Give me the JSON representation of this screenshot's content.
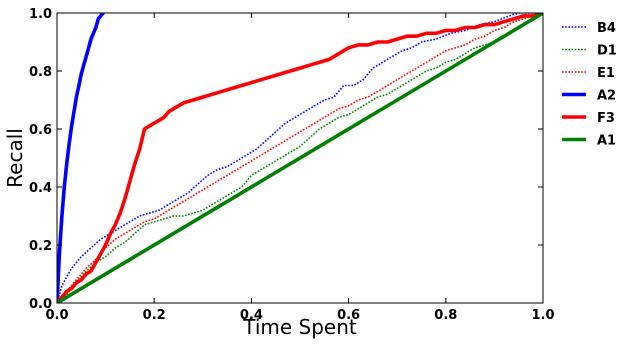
{
  "chart_data": {
    "type": "line",
    "title": "",
    "xlabel": "Time Spent",
    "ylabel": "Recall",
    "xlim": [
      0.0,
      1.0
    ],
    "ylim": [
      0.0,
      1.0
    ],
    "xticks": [
      "0.0",
      "0.2",
      "0.4",
      "0.6",
      "0.8",
      "1.0"
    ],
    "yticks": [
      "0.0",
      "0.2",
      "0.4",
      "0.6",
      "0.8",
      "1.0"
    ],
    "grid": false,
    "legend_position": "outside-right",
    "series": [
      {
        "name": "B4",
        "color": "#0000ff",
        "style": "dotted",
        "points": [
          [
            0.0,
            0.0
          ],
          [
            0.01,
            0.06
          ],
          [
            0.02,
            0.09
          ],
          [
            0.03,
            0.12
          ],
          [
            0.05,
            0.16
          ],
          [
            0.07,
            0.19
          ],
          [
            0.09,
            0.22
          ],
          [
            0.11,
            0.24
          ],
          [
            0.13,
            0.26
          ],
          [
            0.15,
            0.28
          ],
          [
            0.17,
            0.3
          ],
          [
            0.19,
            0.31
          ],
          [
            0.21,
            0.32
          ],
          [
            0.23,
            0.34
          ],
          [
            0.25,
            0.36
          ],
          [
            0.27,
            0.38
          ],
          [
            0.29,
            0.41
          ],
          [
            0.31,
            0.44
          ],
          [
            0.33,
            0.46
          ],
          [
            0.35,
            0.47
          ],
          [
            0.37,
            0.49
          ],
          [
            0.39,
            0.51
          ],
          [
            0.41,
            0.53
          ],
          [
            0.43,
            0.56
          ],
          [
            0.45,
            0.59
          ],
          [
            0.47,
            0.62
          ],
          [
            0.49,
            0.64
          ],
          [
            0.51,
            0.66
          ],
          [
            0.53,
            0.68
          ],
          [
            0.55,
            0.7
          ],
          [
            0.57,
            0.71
          ],
          [
            0.59,
            0.75
          ],
          [
            0.61,
            0.75
          ],
          [
            0.63,
            0.77
          ],
          [
            0.65,
            0.81
          ],
          [
            0.67,
            0.83
          ],
          [
            0.69,
            0.85
          ],
          [
            0.71,
            0.87
          ],
          [
            0.73,
            0.88
          ],
          [
            0.75,
            0.9
          ],
          [
            0.78,
            0.91
          ],
          [
            0.81,
            0.93
          ],
          [
            0.84,
            0.94
          ],
          [
            0.87,
            0.96
          ],
          [
            0.9,
            0.97
          ],
          [
            0.93,
            0.99
          ],
          [
            0.95,
            1.0
          ],
          [
            1.0,
            1.0
          ]
        ]
      },
      {
        "name": "D1",
        "color": "#008000",
        "style": "dotted",
        "points": [
          [
            0.0,
            0.0
          ],
          [
            0.02,
            0.03
          ],
          [
            0.04,
            0.07
          ],
          [
            0.06,
            0.11
          ],
          [
            0.08,
            0.14
          ],
          [
            0.1,
            0.16
          ],
          [
            0.12,
            0.19
          ],
          [
            0.14,
            0.21
          ],
          [
            0.16,
            0.24
          ],
          [
            0.18,
            0.27
          ],
          [
            0.2,
            0.28
          ],
          [
            0.22,
            0.29
          ],
          [
            0.24,
            0.3
          ],
          [
            0.26,
            0.3
          ],
          [
            0.28,
            0.31
          ],
          [
            0.3,
            0.32
          ],
          [
            0.32,
            0.34
          ],
          [
            0.34,
            0.36
          ],
          [
            0.36,
            0.38
          ],
          [
            0.38,
            0.4
          ],
          [
            0.4,
            0.44
          ],
          [
            0.42,
            0.46
          ],
          [
            0.44,
            0.48
          ],
          [
            0.46,
            0.5
          ],
          [
            0.48,
            0.52
          ],
          [
            0.5,
            0.54
          ],
          [
            0.52,
            0.57
          ],
          [
            0.54,
            0.6
          ],
          [
            0.56,
            0.62
          ],
          [
            0.58,
            0.64
          ],
          [
            0.6,
            0.65
          ],
          [
            0.62,
            0.67
          ],
          [
            0.64,
            0.69
          ],
          [
            0.66,
            0.71
          ],
          [
            0.68,
            0.72
          ],
          [
            0.7,
            0.74
          ],
          [
            0.72,
            0.76
          ],
          [
            0.74,
            0.78
          ],
          [
            0.76,
            0.8
          ],
          [
            0.78,
            0.81
          ],
          [
            0.8,
            0.83
          ],
          [
            0.82,
            0.84
          ],
          [
            0.84,
            0.86
          ],
          [
            0.86,
            0.88
          ],
          [
            0.88,
            0.89
          ],
          [
            0.9,
            0.9
          ],
          [
            0.92,
            0.92
          ],
          [
            0.94,
            0.94
          ],
          [
            0.96,
            0.96
          ],
          [
            0.98,
            0.98
          ],
          [
            1.0,
            1.0
          ]
        ]
      },
      {
        "name": "E1",
        "color": "#ff0000",
        "style": "dotted",
        "points": [
          [
            0.0,
            0.0
          ],
          [
            0.02,
            0.04
          ],
          [
            0.04,
            0.08
          ],
          [
            0.06,
            0.12
          ],
          [
            0.08,
            0.15
          ],
          [
            0.1,
            0.19
          ],
          [
            0.12,
            0.22
          ],
          [
            0.14,
            0.24
          ],
          [
            0.16,
            0.26
          ],
          [
            0.18,
            0.28
          ],
          [
            0.2,
            0.29
          ],
          [
            0.22,
            0.31
          ],
          [
            0.24,
            0.33
          ],
          [
            0.26,
            0.35
          ],
          [
            0.28,
            0.37
          ],
          [
            0.3,
            0.39
          ],
          [
            0.32,
            0.41
          ],
          [
            0.34,
            0.43
          ],
          [
            0.36,
            0.45
          ],
          [
            0.38,
            0.47
          ],
          [
            0.4,
            0.49
          ],
          [
            0.42,
            0.51
          ],
          [
            0.44,
            0.53
          ],
          [
            0.46,
            0.55
          ],
          [
            0.48,
            0.57
          ],
          [
            0.5,
            0.59
          ],
          [
            0.52,
            0.61
          ],
          [
            0.54,
            0.63
          ],
          [
            0.56,
            0.65
          ],
          [
            0.58,
            0.67
          ],
          [
            0.6,
            0.68
          ],
          [
            0.62,
            0.7
          ],
          [
            0.64,
            0.71
          ],
          [
            0.66,
            0.73
          ],
          [
            0.68,
            0.75
          ],
          [
            0.7,
            0.77
          ],
          [
            0.72,
            0.79
          ],
          [
            0.74,
            0.81
          ],
          [
            0.76,
            0.83
          ],
          [
            0.78,
            0.85
          ],
          [
            0.8,
            0.87
          ],
          [
            0.82,
            0.88
          ],
          [
            0.84,
            0.89
          ],
          [
            0.86,
            0.91
          ],
          [
            0.88,
            0.92
          ],
          [
            0.9,
            0.94
          ],
          [
            0.92,
            0.95
          ],
          [
            0.94,
            0.97
          ],
          [
            0.96,
            0.98
          ],
          [
            0.98,
            0.99
          ],
          [
            1.0,
            1.0
          ]
        ]
      },
      {
        "name": "A2",
        "color": "#0000ff",
        "style": "solid",
        "points": [
          [
            0.0,
            0.0
          ],
          [
            0.005,
            0.17
          ],
          [
            0.01,
            0.3
          ],
          [
            0.015,
            0.4
          ],
          [
            0.02,
            0.48
          ],
          [
            0.025,
            0.55
          ],
          [
            0.03,
            0.61
          ],
          [
            0.035,
            0.66
          ],
          [
            0.04,
            0.71
          ],
          [
            0.045,
            0.75
          ],
          [
            0.05,
            0.79
          ],
          [
            0.055,
            0.82
          ],
          [
            0.06,
            0.85
          ],
          [
            0.065,
            0.88
          ],
          [
            0.07,
            0.91
          ],
          [
            0.075,
            0.93
          ],
          [
            0.08,
            0.95
          ],
          [
            0.085,
            0.98
          ],
          [
            0.09,
            0.99
          ],
          [
            0.095,
            1.0
          ]
        ]
      },
      {
        "name": "F3",
        "color": "#ff0000",
        "style": "solid",
        "points": [
          [
            0.0,
            0.0
          ],
          [
            0.01,
            0.02
          ],
          [
            0.02,
            0.04
          ],
          [
            0.03,
            0.05
          ],
          [
            0.04,
            0.07
          ],
          [
            0.05,
            0.08
          ],
          [
            0.06,
            0.1
          ],
          [
            0.07,
            0.11
          ],
          [
            0.08,
            0.14
          ],
          [
            0.09,
            0.17
          ],
          [
            0.1,
            0.2
          ],
          [
            0.11,
            0.24
          ],
          [
            0.12,
            0.27
          ],
          [
            0.13,
            0.31
          ],
          [
            0.14,
            0.36
          ],
          [
            0.15,
            0.42
          ],
          [
            0.16,
            0.48
          ],
          [
            0.17,
            0.53
          ],
          [
            0.18,
            0.6
          ],
          [
            0.19,
            0.61
          ],
          [
            0.2,
            0.62
          ],
          [
            0.21,
            0.63
          ],
          [
            0.22,
            0.64
          ],
          [
            0.23,
            0.66
          ],
          [
            0.24,
            0.67
          ],
          [
            0.25,
            0.68
          ],
          [
            0.26,
            0.69
          ],
          [
            0.28,
            0.7
          ],
          [
            0.3,
            0.71
          ],
          [
            0.32,
            0.72
          ],
          [
            0.34,
            0.73
          ],
          [
            0.36,
            0.74
          ],
          [
            0.38,
            0.75
          ],
          [
            0.4,
            0.76
          ],
          [
            0.42,
            0.77
          ],
          [
            0.44,
            0.78
          ],
          [
            0.46,
            0.79
          ],
          [
            0.48,
            0.8
          ],
          [
            0.5,
            0.81
          ],
          [
            0.52,
            0.82
          ],
          [
            0.54,
            0.83
          ],
          [
            0.56,
            0.84
          ],
          [
            0.58,
            0.86
          ],
          [
            0.6,
            0.88
          ],
          [
            0.62,
            0.89
          ],
          [
            0.64,
            0.89
          ],
          [
            0.66,
            0.9
          ],
          [
            0.68,
            0.9
          ],
          [
            0.7,
            0.91
          ],
          [
            0.72,
            0.92
          ],
          [
            0.74,
            0.92
          ],
          [
            0.76,
            0.93
          ],
          [
            0.78,
            0.93
          ],
          [
            0.8,
            0.94
          ],
          [
            0.82,
            0.94
          ],
          [
            0.84,
            0.95
          ],
          [
            0.86,
            0.95
          ],
          [
            0.88,
            0.96
          ],
          [
            0.9,
            0.96
          ],
          [
            0.92,
            0.97
          ],
          [
            0.94,
            0.98
          ],
          [
            0.96,
            0.99
          ],
          [
            0.98,
            0.99
          ],
          [
            1.0,
            1.0
          ]
        ]
      },
      {
        "name": "A1",
        "color": "#008000",
        "style": "solid",
        "points": [
          [
            0.0,
            0.0
          ],
          [
            1.0,
            1.0
          ]
        ]
      }
    ]
  }
}
